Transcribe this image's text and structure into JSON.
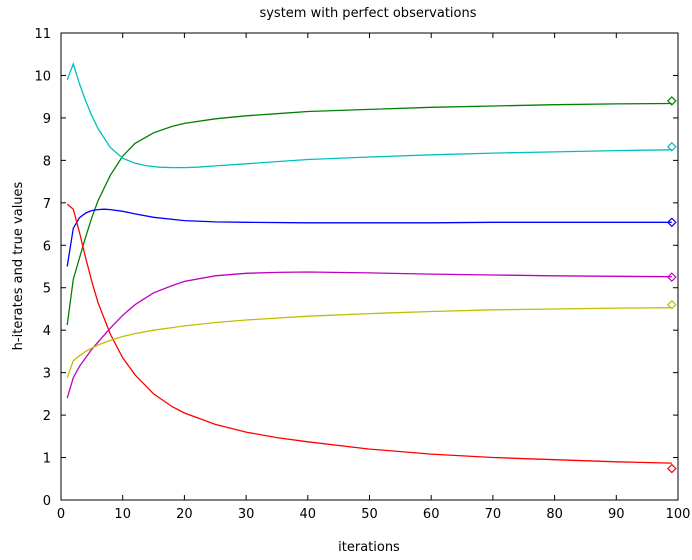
{
  "chart_data": {
    "type": "line",
    "title": "system with perfect observations",
    "xlabel": "iterations",
    "ylabel": "h-iterates and true values",
    "xlim": [
      0,
      100
    ],
    "ylim": [
      0,
      11
    ],
    "xticks": [
      0,
      10,
      20,
      30,
      40,
      50,
      60,
      70,
      80,
      90,
      100
    ],
    "yticks": [
      0,
      1,
      2,
      3,
      4,
      5,
      6,
      7,
      8,
      9,
      10,
      11
    ],
    "grid": false,
    "legend": "none",
    "series": [
      {
        "color": "#008000",
        "x": [
          1,
          2,
          3,
          4,
          5,
          6,
          8,
          10,
          12,
          15,
          18,
          20,
          25,
          30,
          35,
          40,
          50,
          60,
          70,
          80,
          90,
          99
        ],
        "y": [
          4.12,
          5.2,
          5.7,
          6.2,
          6.65,
          7.05,
          7.65,
          8.1,
          8.4,
          8.65,
          8.8,
          8.87,
          8.98,
          9.05,
          9.1,
          9.15,
          9.2,
          9.25,
          9.28,
          9.31,
          9.33,
          9.34
        ],
        "true_value": {
          "x": 99,
          "y": 9.4
        }
      },
      {
        "color": "#00bfbf",
        "x": [
          1,
          2,
          3,
          4,
          5,
          6,
          8,
          10,
          12,
          14,
          16,
          18,
          20,
          22,
          25,
          30,
          35,
          40,
          50,
          60,
          70,
          80,
          90,
          99
        ],
        "y": [
          9.9,
          10.27,
          9.8,
          9.4,
          9.05,
          8.75,
          8.3,
          8.05,
          7.93,
          7.87,
          7.84,
          7.83,
          7.83,
          7.84,
          7.87,
          7.92,
          7.97,
          8.02,
          8.08,
          8.13,
          8.17,
          8.2,
          8.23,
          8.25
        ],
        "true_value": {
          "x": 99,
          "y": 8.32
        }
      },
      {
        "color": "#0000ff",
        "x": [
          1,
          2,
          3,
          4,
          5,
          6,
          7,
          8,
          10,
          12,
          15,
          20,
          25,
          30,
          40,
          50,
          60,
          70,
          80,
          90,
          99
        ],
        "y": [
          5.5,
          6.4,
          6.65,
          6.76,
          6.82,
          6.84,
          6.85,
          6.84,
          6.8,
          6.74,
          6.66,
          6.58,
          6.55,
          6.54,
          6.53,
          6.53,
          6.53,
          6.54,
          6.54,
          6.54,
          6.54
        ],
        "true_value": {
          "x": 99,
          "y": 6.54
        }
      },
      {
        "color": "#ff0000",
        "x": [
          1,
          2,
          3,
          4,
          5,
          6,
          8,
          10,
          12,
          15,
          18,
          20,
          25,
          30,
          35,
          40,
          50,
          60,
          70,
          80,
          90,
          99
        ],
        "y": [
          6.97,
          6.85,
          6.3,
          5.7,
          5.15,
          4.65,
          3.9,
          3.35,
          2.95,
          2.5,
          2.2,
          2.05,
          1.78,
          1.6,
          1.47,
          1.37,
          1.2,
          1.08,
          1.0,
          0.95,
          0.9,
          0.87
        ],
        "true_value": {
          "x": 99,
          "y": 0.74
        }
      },
      {
        "color": "#bf00bf",
        "x": [
          1,
          2,
          3,
          4,
          5,
          6,
          8,
          10,
          12,
          15,
          18,
          20,
          25,
          30,
          35,
          40,
          50,
          60,
          70,
          80,
          90,
          99
        ],
        "y": [
          2.4,
          2.88,
          3.15,
          3.35,
          3.55,
          3.72,
          4.05,
          4.35,
          4.6,
          4.88,
          5.05,
          5.15,
          5.28,
          5.34,
          5.36,
          5.37,
          5.35,
          5.32,
          5.3,
          5.28,
          5.27,
          5.26
        ],
        "true_value": {
          "x": 99,
          "y": 5.25
        }
      },
      {
        "color": "#bfbf00",
        "x": [
          1,
          2,
          3,
          4,
          5,
          6,
          8,
          10,
          12,
          15,
          18,
          20,
          25,
          30,
          40,
          50,
          60,
          70,
          80,
          90,
          99
        ],
        "y": [
          2.88,
          3.28,
          3.4,
          3.5,
          3.58,
          3.65,
          3.76,
          3.85,
          3.92,
          4.0,
          4.06,
          4.1,
          4.18,
          4.24,
          4.33,
          4.39,
          4.44,
          4.48,
          4.5,
          4.52,
          4.53
        ],
        "true_value": {
          "x": 99,
          "y": 4.6
        }
      }
    ]
  }
}
